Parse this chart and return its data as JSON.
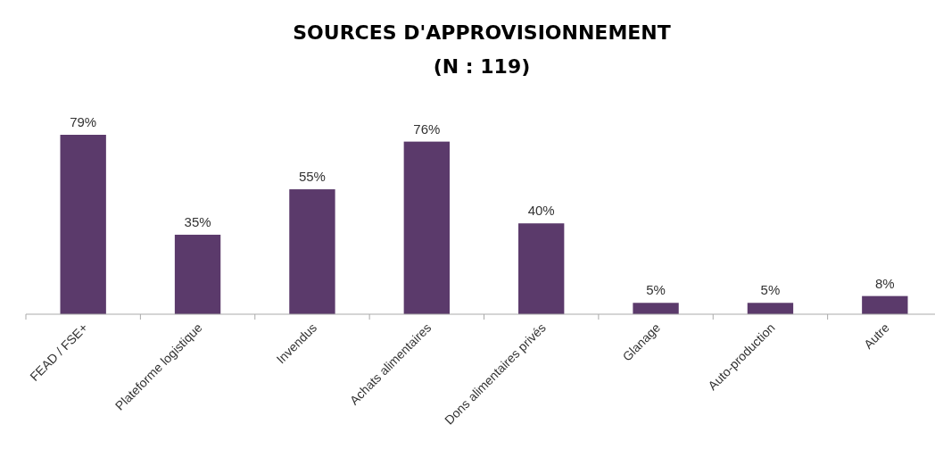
{
  "chart_data": {
    "type": "bar",
    "title": "SOURCES D'APPROVISIONNEMENT",
    "subtitle": "(N : 119)",
    "categories": [
      "FEAD / FSE+",
      "Plateforme logistique",
      "Invendus",
      "Achats alimentaires",
      "Dons alimentaires privés",
      "Glanage",
      "Auto-production",
      "Autre"
    ],
    "values": [
      79,
      35,
      55,
      76,
      40,
      5,
      5,
      8
    ],
    "value_labels": [
      "79%",
      "35%",
      "55%",
      "76%",
      "40%",
      "5%",
      "5%",
      "8%"
    ],
    "color": "#5b3a6b"
  }
}
